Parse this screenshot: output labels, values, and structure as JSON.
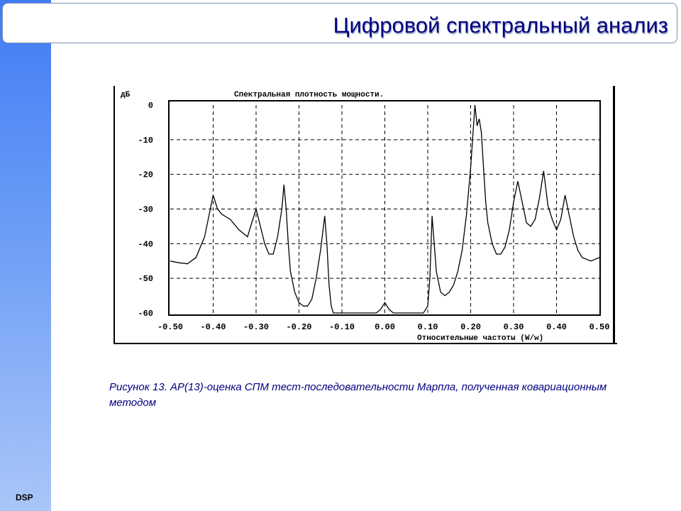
{
  "slide": {
    "title": "Цифровой спектральный анализ",
    "footer_label": "DSP",
    "caption": "Рисунок 13. АР(13)-оценка СПМ тест-последовательности Марпла, полученная ковариационным методом",
    "accent_color": "#3f7cf4",
    "title_color": "#000080"
  },
  "chart_data": {
    "type": "line",
    "title": "Спектральная плотность мощности.",
    "ylabel": "дБ",
    "xlabel": "Относительные частоты (W/w)",
    "xlim": [
      -0.5,
      0.5
    ],
    "ylim": [
      -60,
      0
    ],
    "xticks": [
      "-0.50",
      "-0.40",
      "-0.30",
      "-0.20",
      "-0.10",
      "0.00",
      "0.10",
      "0.20",
      "0.30",
      "0.40",
      "0.50"
    ],
    "yticks": [
      "0",
      "-10",
      "-20",
      "-30",
      "-40",
      "-50",
      "-60"
    ],
    "grid": true,
    "series": [
      {
        "x": [
          -0.5,
          -0.48,
          -0.46,
          -0.44,
          -0.42,
          -0.41,
          -0.4,
          -0.39,
          -0.38,
          -0.36,
          -0.34,
          -0.32,
          -0.31,
          -0.3,
          -0.29,
          -0.28,
          -0.27,
          -0.26,
          -0.25,
          -0.24,
          -0.235,
          -0.23,
          -0.225,
          -0.22,
          -0.21,
          -0.2,
          -0.19,
          -0.18,
          -0.17,
          -0.16,
          -0.15,
          -0.14,
          -0.135,
          -0.13,
          -0.125,
          -0.12,
          -0.11,
          -0.1,
          -0.08,
          -0.06,
          -0.04,
          -0.02,
          -0.01,
          0.0,
          0.01,
          0.02,
          0.04,
          0.06,
          0.08,
          0.09,
          0.1,
          0.105,
          0.11,
          0.12,
          0.13,
          0.14,
          0.15,
          0.16,
          0.17,
          0.18,
          0.19,
          0.2,
          0.21,
          0.215,
          0.22,
          0.225,
          0.23,
          0.235,
          0.24,
          0.25,
          0.26,
          0.27,
          0.28,
          0.29,
          0.3,
          0.31,
          0.32,
          0.33,
          0.34,
          0.35,
          0.36,
          0.37,
          0.38,
          0.39,
          0.4,
          0.41,
          0.42,
          0.43,
          0.44,
          0.45,
          0.46,
          0.48,
          0.5
        ],
        "y": [
          -45,
          -45.5,
          -45.8,
          -44,
          -38,
          -32,
          -26,
          -30,
          -31.5,
          -33,
          -36,
          -38,
          -34,
          -30,
          -35,
          -40,
          -43,
          -43,
          -38,
          -30,
          -23,
          -30,
          -40,
          -48,
          -54,
          -57,
          -58,
          -58,
          -56,
          -50,
          -42,
          -32,
          -40,
          -52,
          -58,
          -60,
          -60,
          -60,
          -60,
          -60,
          -60,
          -60,
          -59,
          -57,
          -59,
          -60,
          -60,
          -60,
          -60,
          -60,
          -58,
          -50,
          -32,
          -48,
          -54,
          -55,
          -54,
          -52,
          -48,
          -42,
          -32,
          -18,
          0,
          -6,
          -4,
          -8,
          -18,
          -28,
          -34,
          -40,
          -43,
          -43,
          -41,
          -36,
          -28,
          -22,
          -28,
          -34,
          -35,
          -33,
          -27,
          -19,
          -29,
          -33,
          -36,
          -33,
          -26,
          -32,
          -38,
          -42,
          -44,
          -45,
          -44
        ]
      }
    ]
  }
}
